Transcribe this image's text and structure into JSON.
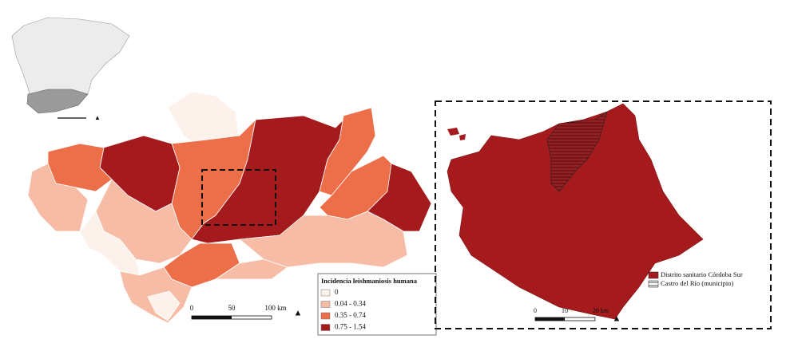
{
  "main_map": {
    "legend": {
      "title": "Incidencia leishmaniosis humana",
      "classes": [
        {
          "label": "0",
          "color": "#fdf1ec"
        },
        {
          "label": "0.04 - 0.34",
          "color": "#f6bca6"
        },
        {
          "label": "0.35 - 0.74",
          "color": "#ec6f4a"
        },
        {
          "label": "0.75 - 1.54",
          "color": "#a51a1c"
        }
      ]
    },
    "scale_bar": {
      "labels": [
        "0",
        "50",
        "100 km"
      ]
    }
  },
  "detail_map": {
    "legend": {
      "items": [
        {
          "label": "Distrito sanitario Córdoba Sur",
          "color": "#a51a1c"
        },
        {
          "label": "Castro del Río (municipio)"
        }
      ]
    },
    "scale_bar": {
      "labels": [
        "0",
        "10",
        "20 km"
      ]
    }
  }
}
